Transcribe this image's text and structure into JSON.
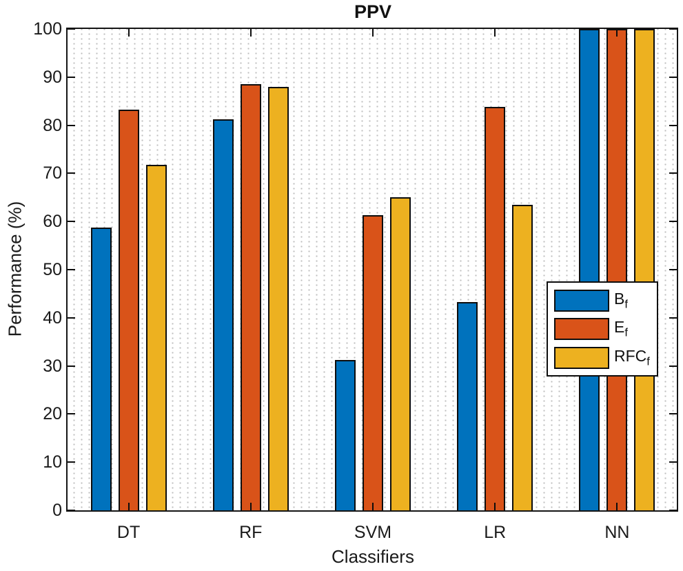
{
  "chart_data": {
    "type": "bar",
    "title": "PPV",
    "xlabel": "Classifiers",
    "ylabel": "Performance (%)",
    "categories": [
      "DT",
      "RF",
      "SVM",
      "LR",
      "NN"
    ],
    "series": [
      {
        "name": "B",
        "subscript": "f",
        "color": "#0072BD",
        "values": [
          58.7,
          81.2,
          31.2,
          43.2,
          100
        ]
      },
      {
        "name": "E",
        "subscript": "f",
        "color": "#D95319",
        "values": [
          83.2,
          88.5,
          61.3,
          83.8,
          100
        ]
      },
      {
        "name": "RFC",
        "subscript": "f",
        "color": "#EDB120",
        "values": [
          71.8,
          87.9,
          65.0,
          63.4,
          100
        ]
      }
    ],
    "ylim": [
      0,
      100
    ],
    "yticks": [
      0,
      10,
      20,
      30,
      40,
      50,
      60,
      70,
      80,
      90,
      100
    ],
    "grid": "dotted",
    "legend_position": "middle-right",
    "bar_edge_color": "#0d0d0d",
    "axis_color": "#141414",
    "grid_dot_color": "#bfbfbf",
    "background_color": "#ffffff"
  }
}
